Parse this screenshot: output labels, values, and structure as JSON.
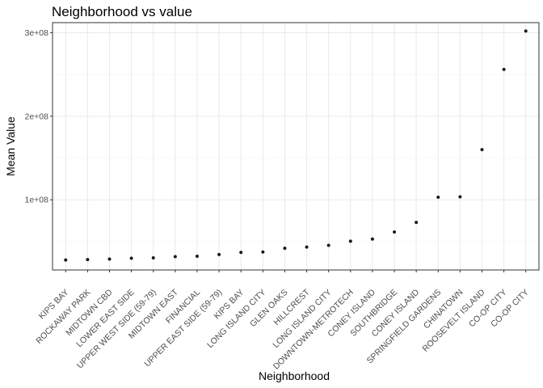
{
  "chart_data": {
    "type": "scatter",
    "title": "Neighborhood vs value",
    "xlabel": "Neighborhood",
    "ylabel": "Mean Value",
    "categories": [
      "KIPS BAY",
      "ROCKAWAY PARK",
      "MIDTOWN CBD",
      "LOWER EAST SIDE",
      "UPPER WEST SIDE (59-79)",
      "MIDTOWN EAST",
      "FINANCIAL",
      "UPPER EAST SIDE (59-79)",
      "KIPS BAY",
      "LONG ISLAND CITY",
      "GLEN OAKS",
      "HILLCREST",
      "LONG ISLAND CITY",
      "DOWNTOWN-METROTECH",
      "CONEY ISLAND",
      "SOUTHBRIDGE",
      "CONEY ISLAND",
      "SPRINGFIELD GARDENS",
      "CHINATOWN",
      "ROOSEVELT ISLAND",
      "CO-OP CITY",
      "CO-OP CITY"
    ],
    "values": [
      28000000,
      28500000,
      29000000,
      30000000,
      30500000,
      32000000,
      32500000,
      34500000,
      37000000,
      37500000,
      42000000,
      43500000,
      45500000,
      50500000,
      53000000,
      61500000,
      73000000,
      103000000,
      103500000,
      160000000,
      256000000,
      302000000
    ],
    "ylim": [
      16000000,
      312000000
    ],
    "yticks": [
      100000000,
      200000000,
      300000000
    ],
    "ytick_labels": [
      "1e+08",
      "2e+08",
      "3e+08"
    ],
    "grid": true,
    "theme": "bw",
    "colors": {
      "point": "#1a1a1a",
      "grid_major": "#ebebeb",
      "grid_minor": "#f5f5f5",
      "border": "#333333",
      "tick_text": "#4d4d4d"
    }
  }
}
